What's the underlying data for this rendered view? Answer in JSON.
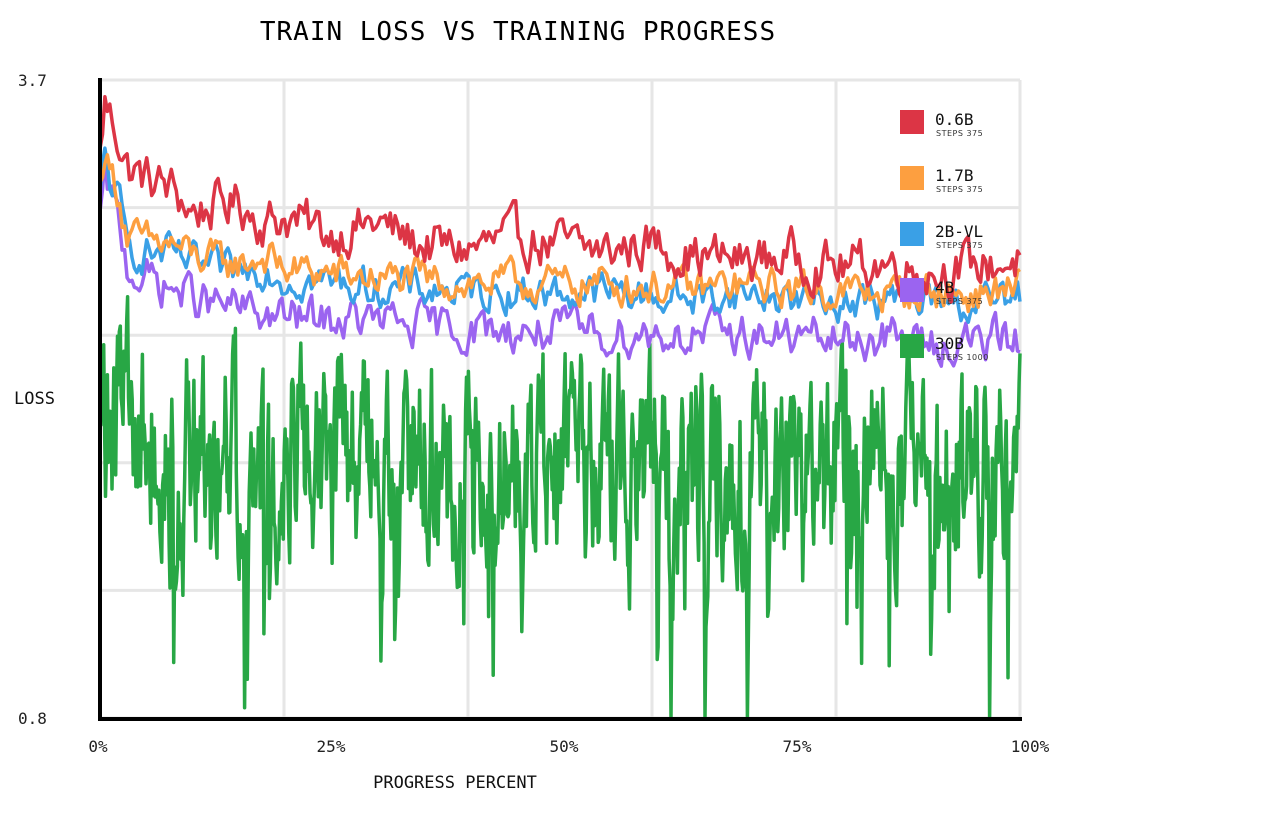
{
  "chart_data": {
    "type": "line",
    "title": "TRAIN LOSS VS TRAINING PROGRESS",
    "xlabel": "PROGRESS PERCENT",
    "ylabel": "LOSS",
    "xlim": [
      0,
      100
    ],
    "ylim": [
      0.8,
      3.7
    ],
    "x_ticks": [
      "0%",
      "25%",
      "50%",
      "75%",
      "100%"
    ],
    "y_ticks": [
      "3.7",
      "0.8"
    ],
    "grid": true,
    "legend_position": "top-right",
    "series": [
      {
        "name": "0.6B",
        "sub": "STEPS 375",
        "color": "#dc3545",
        "x": [
          0,
          0.5,
          1,
          2,
          3,
          5,
          8,
          10,
          12,
          15,
          18,
          20,
          25,
          30,
          35,
          40,
          45,
          50,
          55,
          60,
          65,
          70,
          75,
          80,
          85,
          90,
          95,
          100
        ],
        "y": [
          3.35,
          3.6,
          3.55,
          3.45,
          3.3,
          3.25,
          3.2,
          3.1,
          3.12,
          3.15,
          3.05,
          3.08,
          3.0,
          3.05,
          2.95,
          2.93,
          2.98,
          2.95,
          2.92,
          2.96,
          2.9,
          2.88,
          2.9,
          2.85,
          2.87,
          2.83,
          2.85,
          2.88
        ]
      },
      {
        "name": "1.7B",
        "sub": "STEPS 375",
        "color": "#fd9f40",
        "x": [
          0,
          0.5,
          1,
          2,
          3,
          5,
          8,
          10,
          12,
          15,
          18,
          20,
          25,
          30,
          35,
          40,
          45,
          50,
          55,
          60,
          65,
          70,
          75,
          80,
          85,
          90,
          95,
          100
        ],
        "y": [
          3.2,
          3.4,
          3.3,
          3.2,
          2.98,
          2.96,
          2.95,
          2.9,
          2.88,
          2.86,
          2.9,
          2.84,
          2.82,
          2.8,
          2.79,
          2.78,
          2.78,
          2.77,
          2.78,
          2.76,
          2.75,
          2.77,
          2.75,
          2.74,
          2.73,
          2.74,
          2.72,
          2.76
        ]
      },
      {
        "name": "2B-VL",
        "sub": "STEPS 375",
        "color": "#3aa0e6",
        "x": [
          0,
          0.5,
          1,
          2,
          3,
          5,
          8,
          10,
          12,
          15,
          18,
          20,
          25,
          30,
          35,
          40,
          45,
          50,
          55,
          60,
          65,
          70,
          75,
          80,
          85,
          90,
          95,
          100
        ],
        "y": [
          3.15,
          3.35,
          3.25,
          3.15,
          2.93,
          2.92,
          2.9,
          2.86,
          2.84,
          2.82,
          2.86,
          2.8,
          2.78,
          2.76,
          2.75,
          2.74,
          2.74,
          2.73,
          2.74,
          2.72,
          2.71,
          2.73,
          2.71,
          2.7,
          2.69,
          2.7,
          2.68,
          2.72
        ]
      },
      {
        "name": "4B",
        "sub": "STEPS 375",
        "color": "#9b64f0",
        "x": [
          0,
          0.5,
          1,
          2,
          3,
          5,
          8,
          10,
          12,
          15,
          18,
          20,
          25,
          30,
          35,
          40,
          45,
          50,
          55,
          60,
          65,
          70,
          75,
          80,
          85,
          90,
          95,
          100
        ],
        "y": [
          3.05,
          3.25,
          3.18,
          3.05,
          2.85,
          2.8,
          2.75,
          2.72,
          2.68,
          2.66,
          2.63,
          2.62,
          2.61,
          2.6,
          2.58,
          2.57,
          2.56,
          2.56,
          2.55,
          2.55,
          2.54,
          2.55,
          2.53,
          2.52,
          2.53,
          2.5,
          2.51,
          2.52
        ]
      },
      {
        "name": "30B",
        "sub": "STEPS 1000",
        "color": "#28a745",
        "x": [
          0,
          1,
          2,
          3,
          5,
          8,
          10,
          12,
          15,
          18,
          20,
          25,
          30,
          35,
          40,
          45,
          50,
          55,
          60,
          65,
          70,
          75,
          80,
          85,
          90,
          95,
          100
        ],
        "y": [
          2.25,
          2.2,
          2.15,
          2.12,
          2.1,
          2.08,
          2.05,
          2.06,
          2.04,
          2.02,
          2.05,
          2.0,
          2.02,
          1.98,
          1.96,
          1.98,
          1.95,
          1.97,
          1.95,
          1.94,
          1.96,
          1.93,
          1.95,
          1.92,
          1.94,
          1.93,
          1.95
        ]
      }
    ]
  }
}
